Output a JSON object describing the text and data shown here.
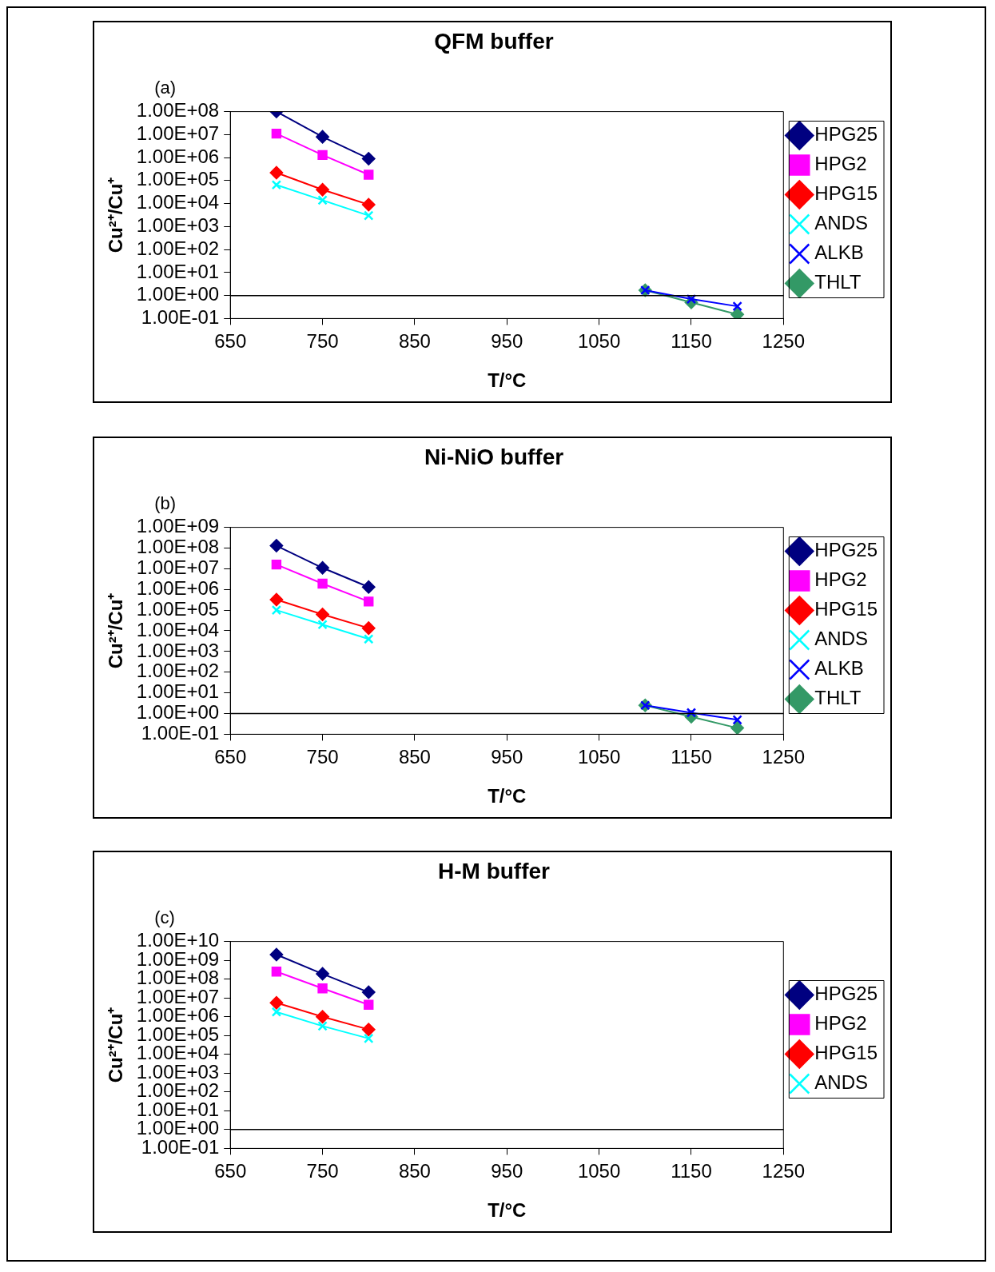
{
  "chart_data": [
    {
      "type": "line",
      "title": "QFM buffer",
      "annotations": [
        "(a)"
      ],
      "xlabel": "T/°C",
      "ylabel": "Cu²⁺/Cu⁺",
      "log": "y",
      "legend": "right",
      "xlim": [
        650,
        1250
      ],
      "xticks": [
        650,
        750,
        850,
        950,
        1050,
        1150,
        1250
      ],
      "ylim": [
        0.1,
        100000000
      ],
      "yticks": [
        {
          "value": 0.1,
          "label": "1.00E-01"
        },
        {
          "value": 1,
          "label": "1.00E+00"
        },
        {
          "value": 10,
          "label": "1.00E+01"
        },
        {
          "value": 100,
          "label": "1.00E+02"
        },
        {
          "value": 1000,
          "label": "1.00E+03"
        },
        {
          "value": 10000,
          "label": "1.00E+04"
        },
        {
          "value": 100000,
          "label": "1.00E+05"
        },
        {
          "value": 1000000,
          "label": "1.00E+06"
        },
        {
          "value": 10000000,
          "label": "1.00E+07"
        },
        {
          "value": 100000000,
          "label": "1.00E+08"
        }
      ],
      "ref_lines": [
        {
          "axis": "y",
          "value": 1,
          "color": "#000000"
        }
      ],
      "series": [
        {
          "name": "HPG25",
          "color": "#000080",
          "marker": "diamond",
          "x": [
            700,
            750,
            800
          ],
          "values": [
            100000000,
            8000000,
            900000
          ]
        },
        {
          "name": "HPG2",
          "color": "#ff00ff",
          "marker": "square",
          "x": [
            700,
            750,
            800
          ],
          "values": [
            11000000,
            1300000,
            180000
          ]
        },
        {
          "name": "HPG15",
          "color": "#ff0000",
          "marker": "diamond",
          "x": [
            700,
            750,
            800
          ],
          "values": [
            220000,
            40000,
            9000
          ]
        },
        {
          "name": "ANDS",
          "color": "#00ffff",
          "marker": "cross",
          "x": [
            700,
            750,
            800
          ],
          "values": [
            65000,
            14000,
            3000
          ]
        },
        {
          "name": "ALKB",
          "color": "#0000ff",
          "marker": "cross",
          "x": [
            1100,
            1150,
            1200
          ],
          "values": [
            1.7,
            0.7,
            0.34
          ]
        },
        {
          "name": "THLT",
          "color": "#339966",
          "marker": "diamond",
          "x": [
            1100,
            1150,
            1200
          ],
          "values": [
            1.7,
            0.5,
            0.15
          ]
        }
      ]
    },
    {
      "type": "line",
      "title": "Ni-NiO buffer",
      "annotations": [
        "(b)"
      ],
      "xlabel": "T/°C",
      "ylabel": "Cu²⁺/Cu⁺",
      "log": "y",
      "legend": "right",
      "xlim": [
        650,
        1250
      ],
      "xticks": [
        650,
        750,
        850,
        950,
        1050,
        1150,
        1250
      ],
      "ylim": [
        0.1,
        1000000000
      ],
      "yticks": [
        {
          "value": 0.1,
          "label": "1.00E-01"
        },
        {
          "value": 1,
          "label": "1.00E+00"
        },
        {
          "value": 10,
          "label": "1.00E+01"
        },
        {
          "value": 100,
          "label": "1.00E+02"
        },
        {
          "value": 1000,
          "label": "1.00E+03"
        },
        {
          "value": 10000,
          "label": "1.00E+04"
        },
        {
          "value": 100000,
          "label": "1.00E+05"
        },
        {
          "value": 1000000,
          "label": "1.00E+06"
        },
        {
          "value": 10000000,
          "label": "1.00E+07"
        },
        {
          "value": 100000000,
          "label": "1.00E+08"
        },
        {
          "value": 1000000000,
          "label": "1.00E+09"
        }
      ],
      "ref_lines": [
        {
          "axis": "y",
          "value": 1,
          "color": "#000000"
        }
      ],
      "series": [
        {
          "name": "HPG25",
          "color": "#000080",
          "marker": "diamond",
          "x": [
            700,
            750,
            800
          ],
          "values": [
            130000000,
            11000000,
            1300000
          ]
        },
        {
          "name": "HPG2",
          "color": "#ff00ff",
          "marker": "square",
          "x": [
            700,
            750,
            800
          ],
          "values": [
            16000000,
            1900000,
            260000
          ]
        },
        {
          "name": "HPG15",
          "color": "#ff0000",
          "marker": "diamond",
          "x": [
            700,
            750,
            800
          ],
          "values": [
            320000,
            62000,
            13500
          ]
        },
        {
          "name": "ANDS",
          "color": "#00ffff",
          "marker": "cross",
          "x": [
            700,
            750,
            800
          ],
          "values": [
            100000,
            20000,
            4000
          ]
        },
        {
          "name": "ALKB",
          "color": "#0000ff",
          "marker": "cross",
          "x": [
            1100,
            1150,
            1200
          ],
          "values": [
            2.5,
            1.1,
            0.5
          ]
        },
        {
          "name": "THLT",
          "color": "#339966",
          "marker": "diamond",
          "x": [
            1100,
            1150,
            1200
          ],
          "values": [
            2.5,
            0.7,
            0.2
          ]
        }
      ]
    },
    {
      "type": "line",
      "title": "H-M buffer",
      "annotations": [
        "(c)"
      ],
      "xlabel": "T/°C",
      "ylabel": "Cu²⁺/Cu⁺",
      "log": "y",
      "legend": "right",
      "xlim": [
        650,
        1250
      ],
      "xticks": [
        650,
        750,
        850,
        950,
        1050,
        1150,
        1250
      ],
      "ylim": [
        0.1,
        10000000000
      ],
      "yticks": [
        {
          "value": 0.1,
          "label": "1.00E-01"
        },
        {
          "value": 1,
          "label": "1.00E+00"
        },
        {
          "value": 10,
          "label": "1.00E+01"
        },
        {
          "value": 100,
          "label": "1.00E+02"
        },
        {
          "value": 1000,
          "label": "1.00E+03"
        },
        {
          "value": 10000,
          "label": "1.00E+04"
        },
        {
          "value": 100000,
          "label": "1.00E+05"
        },
        {
          "value": 1000000,
          "label": "1.00E+06"
        },
        {
          "value": 10000000,
          "label": "1.00E+07"
        },
        {
          "value": 100000000,
          "label": "1.00E+08"
        },
        {
          "value": 1000000000,
          "label": "1.00E+09"
        },
        {
          "value": 10000000000,
          "label": "1.00E+10"
        }
      ],
      "ref_lines": [
        {
          "axis": "y",
          "value": 1,
          "color": "#000000"
        }
      ],
      "series": [
        {
          "name": "HPG25",
          "color": "#000080",
          "marker": "diamond",
          "x": [
            700,
            750,
            800
          ],
          "values": [
            2000000000,
            190000000,
            20000000
          ]
        },
        {
          "name": "HPG2",
          "color": "#ff00ff",
          "marker": "square",
          "x": [
            700,
            750,
            800
          ],
          "values": [
            250000000,
            32000000,
            4300000
          ]
        },
        {
          "name": "HPG15",
          "color": "#ff0000",
          "marker": "diamond",
          "x": [
            700,
            750,
            800
          ],
          "values": [
            5500000,
            1000000,
            210000
          ]
        },
        {
          "name": "ANDS",
          "color": "#00ffff",
          "marker": "cross",
          "x": [
            700,
            750,
            800
          ],
          "values": [
            1800000,
            320000,
            70000
          ]
        }
      ]
    }
  ]
}
